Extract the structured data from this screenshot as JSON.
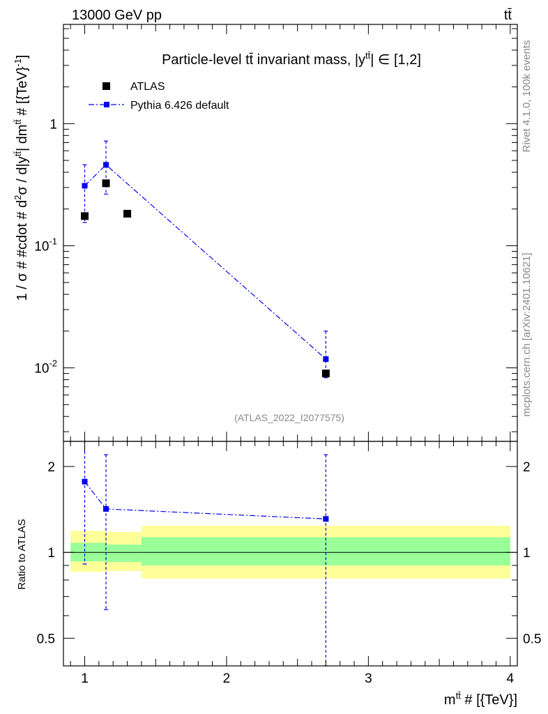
{
  "header": {
    "energy_label": "13000 GeV pp",
    "process_label": "tt̄"
  },
  "side_text": {
    "rivet": "Rivet 4.1.0,  100k events",
    "mcplots": "mcplots.cern.ch [arXiv:2401.10621]"
  },
  "analysis_id": "(ATLAS_2022_I2077575)",
  "colors": {
    "mc": "#0000ee",
    "data": "#000000",
    "band_inner": "#99ff99",
    "band_outer": "#ffff99",
    "tag_grey": "#888888"
  },
  "chart_data": [
    {
      "type": "scatter",
      "title": "Particle-level tt̄ invariant mass, |y^tt̄| ∈ [1,2]",
      "title_parts": {
        "main": "Particle-level tt̄ invariant mass, |y",
        "sup": "tt̄",
        "tail": "| ∈ [1,2]"
      },
      "ylabel": "1 / σ # #cdot # d²σ / d|y^tt̄| dm^tt̄ # [{TeV}⁻¹]",
      "ylabel_parts": {
        "a": "1 / σ # #cdot # d",
        "b": "σ / d|y",
        "c": "| dm",
        "d": " # [{TeV}",
        "e": "]",
        "sup2": "2",
        "suptt": "tt̄",
        "supm1": "-1"
      },
      "yscale": "log",
      "xlim": [
        0.85,
        4.05
      ],
      "ylim": [
        0.0025,
        6.5
      ],
      "y_ticks": [
        {
          "value": 0.01,
          "label_base": "10",
          "label_exp": "-2"
        },
        {
          "value": 0.1,
          "label_base": "10",
          "label_exp": "-1"
        },
        {
          "value": 1,
          "label_base": "1",
          "label_exp": ""
        }
      ],
      "legend_placement": "top-left",
      "legend": [
        "ATLAS",
        "Pythia 6.426 default"
      ],
      "series": [
        {
          "name": "ATLAS",
          "x": [
            1.0,
            1.15,
            1.3,
            2.7
          ],
          "y": [
            0.175,
            0.325,
            0.183,
            0.009
          ]
        },
        {
          "name": "Pythia 6.426 default",
          "x": [
            1.0,
            1.15,
            2.7
          ],
          "y": [
            0.31,
            0.46,
            0.0118
          ],
          "y_err_low": [
            0.155,
            0.265,
            0.0083
          ],
          "y_err_high": [
            0.46,
            0.72,
            0.02
          ]
        }
      ]
    },
    {
      "type": "scatter",
      "ylabel": "Ratio to ATLAS",
      "xlabel": "m^tt̄ # [{TeV}]",
      "xlabel_parts": {
        "a": "m",
        "sup": "tt̄",
        "b": " # [{TeV}]"
      },
      "yscale": "log",
      "xlim": [
        0.85,
        4.05
      ],
      "ylim": [
        0.4,
        2.45
      ],
      "x_ticks": [
        1,
        2,
        3,
        4
      ],
      "x_tick_labels": [
        "1",
        "2",
        "3",
        "4"
      ],
      "y_ticks": [
        0.5,
        1,
        2
      ],
      "y_tick_labels": [
        "0.5",
        "1",
        "2"
      ],
      "reference_line": 1,
      "bands": [
        {
          "x_range": [
            0.9,
            1.15
          ],
          "inner": [
            0.93,
            1.08
          ],
          "outer": [
            0.855,
            1.19
          ]
        },
        {
          "x_range": [
            1.15,
            1.4
          ],
          "inner": [
            0.925,
            1.065
          ],
          "outer": [
            0.86,
            1.18
          ]
        },
        {
          "x_range": [
            1.4,
            4.0
          ],
          "inner": [
            0.9,
            1.13
          ],
          "outer": [
            0.81,
            1.24
          ]
        }
      ],
      "series": [
        {
          "name": "Pythia 6.426 default",
          "x": [
            1.0,
            1.15,
            2.7
          ],
          "y": [
            1.77,
            1.42,
            1.31
          ],
          "y_err_low": [
            0.91,
            0.63,
            0.3
          ],
          "y_err_high": [
            3.0,
            2.2,
            2.2
          ]
        }
      ]
    }
  ]
}
